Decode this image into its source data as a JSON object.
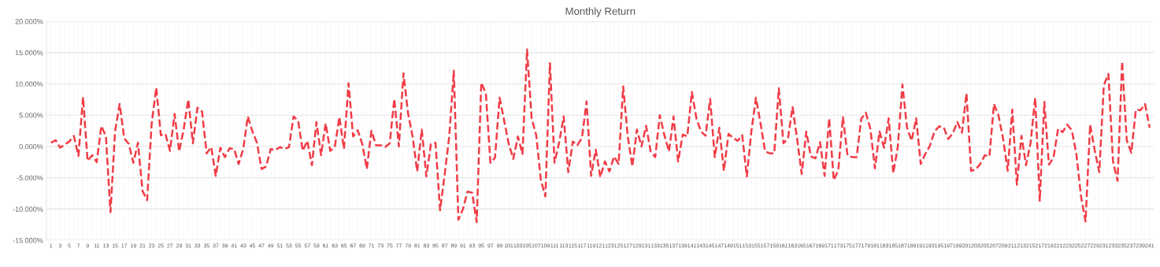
{
  "chart_data": {
    "type": "line",
    "title": "Monthly Return",
    "categories": [
      "1",
      null,
      "3",
      null,
      "5",
      null,
      "7",
      null,
      "9",
      null,
      "11",
      null,
      "13",
      null,
      "15",
      null,
      "17",
      null,
      "19",
      null,
      "21",
      null,
      "23",
      null,
      "25",
      null,
      "27",
      null,
      "29",
      null,
      "31",
      null,
      "33",
      null,
      "35",
      null,
      "37",
      null,
      "39",
      null,
      "41",
      null,
      "43",
      null,
      "45",
      null,
      "47",
      null,
      "49",
      null,
      "51",
      null,
      "53",
      null,
      "55",
      null,
      "57",
      null,
      "59",
      null,
      "61",
      null,
      "63",
      null,
      "65",
      null,
      "67",
      null,
      "69",
      null,
      "71",
      null,
      "73",
      null,
      "75",
      null,
      "77",
      null,
      "79",
      null,
      "81",
      null,
      "83",
      null,
      "85",
      null,
      "87",
      null,
      "89",
      null,
      "91",
      null,
      "93",
      null,
      "95",
      null,
      "97",
      null,
      "99",
      null,
      "101",
      null,
      "103",
      null,
      "105",
      null,
      "107",
      null,
      "109",
      null,
      "111",
      null,
      "113",
      null,
      "115",
      null,
      "117",
      null,
      "119",
      null,
      "121",
      null,
      "123",
      null,
      "125",
      null,
      "127",
      null,
      "129",
      null,
      "131",
      null,
      "133",
      null,
      "135",
      null,
      "137",
      null,
      "139",
      null,
      "141",
      null,
      "143",
      null,
      "145",
      null,
      "147",
      null,
      "149",
      null,
      "151",
      null,
      "153",
      null,
      "155",
      null,
      "157",
      null,
      "159",
      null,
      "161",
      null,
      "163",
      null,
      "165",
      null,
      "167",
      null,
      "169",
      null,
      "171",
      null,
      "173",
      null,
      "175",
      null,
      "177",
      null,
      "179",
      null,
      "181",
      null,
      "183",
      null,
      "185",
      null,
      "187",
      null,
      "189",
      null,
      "191",
      null,
      "193",
      null,
      "195",
      null,
      "197",
      null,
      "199",
      null,
      "201",
      null,
      "203",
      null,
      "205",
      null,
      "207",
      null,
      "209",
      null,
      "211",
      null,
      "213",
      null,
      "215",
      null,
      "217",
      null,
      "219",
      null,
      "221",
      null,
      "223",
      null,
      "225",
      null,
      "227",
      null,
      "229",
      null,
      "231",
      null,
      "233",
      null,
      "235",
      null,
      "237",
      null,
      "239",
      null,
      "241"
    ],
    "series": [
      {
        "color": "#f03c46",
        "values": [
          0.6,
          1.0,
          -0.2,
          0.3,
          0.8,
          1.7,
          -1.5,
          7.9,
          -2.3,
          -1.4,
          -2.5,
          3.3,
          1.6,
          -10.5,
          2.4,
          6.8,
          1.3,
          0.4,
          -2.6,
          0.6,
          -7.1,
          -8.6,
          3.7,
          9.4,
          1.8,
          2.0,
          -0.7,
          5.2,
          -0.8,
          2.8,
          7.5,
          0.5,
          6.2,
          5.6,
          -1.1,
          -0.1,
          -4.7,
          -0.2,
          -1.7,
          -0.3,
          -0.4,
          -2.8,
          -0.4,
          4.8,
          2.4,
          0.6,
          -3.6,
          -3.2,
          -0.4,
          -0.6,
          -0.1,
          -0.4,
          -0.1,
          4.8,
          4.1,
          -0.7,
          0.9,
          -3.0,
          3.9,
          -1.4,
          3.7,
          -0.7,
          -0.1,
          4.7,
          -0.4,
          10.1,
          1.6,
          2.6,
          0.4,
          -3.6,
          2.5,
          0.2,
          0.2,
          -0.1,
          0.5,
          7.6,
          0.0,
          11.7,
          5.3,
          1.6,
          -4.0,
          2.7,
          -4.8,
          0.4,
          0.6,
          -10.2,
          -4.5,
          1.6,
          12.1,
          -11.7,
          -10.0,
          -7.2,
          -7.4,
          -12.1,
          10.2,
          8.5,
          -2.6,
          -1.8,
          7.8,
          4.1,
          0.4,
          -2.0,
          1.6,
          -1.2,
          15.5,
          4.5,
          1.8,
          -5.3,
          -8.0,
          13.3,
          -2.6,
          0.6,
          4.8,
          -4.1,
          0.8,
          0.2,
          1.4,
          7.2,
          -4.7,
          -0.5,
          -4.9,
          -2.4,
          -4.0,
          -1.6,
          -2.8,
          9.6,
          1.6,
          -3.2,
          2.7,
          0.0,
          3.3,
          -0.8,
          -1.7,
          5.0,
          1.8,
          -0.8,
          4.8,
          -2.4,
          1.9,
          1.6,
          8.7,
          4.5,
          2.4,
          1.7,
          7.6,
          -1.7,
          3.0,
          -3.9,
          2.0,
          1.4,
          0.9,
          1.8,
          -4.8,
          2.4,
          7.8,
          3.7,
          -0.8,
          -1.1,
          -1.1,
          9.3,
          0.5,
          1.3,
          6.3,
          1.2,
          -4.4,
          2.4,
          -1.6,
          -1.9,
          0.7,
          -4.7,
          4.5,
          -5.4,
          -3.7,
          4.7,
          -1.4,
          -1.7,
          -1.7,
          4.4,
          5.4,
          2.8,
          -3.5,
          2.4,
          -0.2,
          4.5,
          -4.3,
          0.0,
          9.9,
          3.0,
          0.9,
          4.5,
          -2.8,
          -1.2,
          0.1,
          2.4,
          3.2,
          3.1,
          1.2,
          2.1,
          3.9,
          2.2,
          8.5,
          -3.9,
          -3.7,
          -2.8,
          -1.4,
          -1.6,
          6.8,
          4.9,
          1.2,
          -3.9,
          5.9,
          -6.1,
          1.7,
          -3.0,
          0.6,
          7.8,
          -8.7,
          7.1,
          -2.9,
          -1.8,
          2.8,
          2.3,
          3.5,
          2.6,
          -1.2,
          -7.9,
          -12.0,
          3.5,
          -0.6,
          -4.1,
          9.8,
          11.6,
          -2.4,
          -5.5,
          13.6,
          1.0,
          -1.0,
          5.9,
          5.8,
          6.8,
          3.0
        ]
      }
    ],
    "ylim": [
      -15,
      20
    ],
    "yticks": [
      {
        "value": -15,
        "label": "-15.000%"
      },
      {
        "value": -10,
        "label": "-10.000%"
      },
      {
        "value": -5,
        "label": "-5.000%"
      },
      {
        "value": 0,
        "label": "0.000%"
      },
      {
        "value": 5,
        "label": "5.000%"
      },
      {
        "value": 10,
        "label": "10.000%"
      },
      {
        "value": 15,
        "label": "15.000%"
      },
      {
        "value": 20,
        "label": "20.000%"
      }
    ],
    "grid": true,
    "line_style": "dashed",
    "marker": "none"
  }
}
